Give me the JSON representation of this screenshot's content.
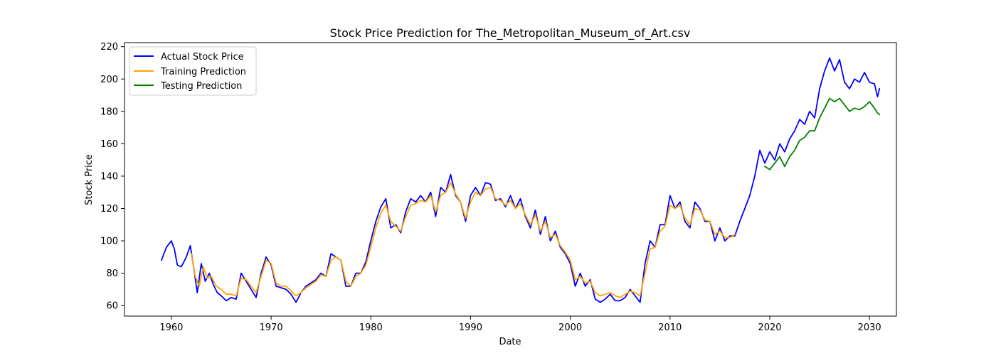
{
  "chart_data": {
    "type": "line",
    "title": "Stock Price Prediction for The_Metropolitan_Museum_of_Art.csv",
    "xlabel": "Date",
    "ylabel": "Stock Price",
    "xlim": [
      1955.3,
      2032.7
    ],
    "ylim": [
      53.5,
      222.5
    ],
    "x_ticks": [
      1960,
      1970,
      1980,
      1990,
      2000,
      2010,
      2020,
      2030
    ],
    "y_ticks": [
      60,
      80,
      100,
      120,
      140,
      160,
      180,
      200,
      220
    ],
    "grid": false,
    "legend_position": "upper left",
    "series": [
      {
        "name": "Actual Stock Price",
        "color": "#0000ff",
        "points": [
          [
            1959.0,
            88
          ],
          [
            1959.5,
            96
          ],
          [
            1960.0,
            100
          ],
          [
            1960.3,
            95
          ],
          [
            1960.6,
            85
          ],
          [
            1961.0,
            84
          ],
          [
            1961.5,
            90
          ],
          [
            1961.9,
            97
          ],
          [
            1962.2,
            85
          ],
          [
            1962.6,
            68
          ],
          [
            1963.0,
            86
          ],
          [
            1963.4,
            75
          ],
          [
            1963.8,
            80
          ],
          [
            1964.2,
            73
          ],
          [
            1964.6,
            68
          ],
          [
            1965.0,
            66
          ],
          [
            1965.5,
            63
          ],
          [
            1966.0,
            65
          ],
          [
            1966.5,
            64
          ],
          [
            1967.0,
            80
          ],
          [
            1967.5,
            75
          ],
          [
            1968.0,
            70
          ],
          [
            1968.5,
            65
          ],
          [
            1969.0,
            80
          ],
          [
            1969.5,
            90
          ],
          [
            1970.0,
            85
          ],
          [
            1970.5,
            72
          ],
          [
            1971.0,
            71
          ],
          [
            1971.5,
            70
          ],
          [
            1972.0,
            67
          ],
          [
            1972.5,
            62
          ],
          [
            1973.0,
            68
          ],
          [
            1973.5,
            72
          ],
          [
            1974.0,
            74
          ],
          [
            1974.5,
            76
          ],
          [
            1975.0,
            80
          ],
          [
            1975.5,
            78
          ],
          [
            1976.0,
            92
          ],
          [
            1976.5,
            90
          ],
          [
            1977.0,
            88
          ],
          [
            1977.5,
            72
          ],
          [
            1978.0,
            72
          ],
          [
            1978.5,
            80
          ],
          [
            1979.0,
            80
          ],
          [
            1979.5,
            87
          ],
          [
            1980.0,
            100
          ],
          [
            1980.5,
            112
          ],
          [
            1981.0,
            121
          ],
          [
            1981.5,
            126
          ],
          [
            1982.0,
            108
          ],
          [
            1982.5,
            110
          ],
          [
            1983.0,
            105
          ],
          [
            1983.5,
            118
          ],
          [
            1984.0,
            126
          ],
          [
            1984.5,
            124
          ],
          [
            1985.0,
            128
          ],
          [
            1985.5,
            124
          ],
          [
            1986.0,
            130
          ],
          [
            1986.5,
            115
          ],
          [
            1987.0,
            133
          ],
          [
            1987.5,
            130
          ],
          [
            1988.0,
            141
          ],
          [
            1988.5,
            128
          ],
          [
            1989.0,
            124
          ],
          [
            1989.5,
            112
          ],
          [
            1990.0,
            128
          ],
          [
            1990.5,
            133
          ],
          [
            1991.0,
            128
          ],
          [
            1991.5,
            136
          ],
          [
            1992.0,
            135
          ],
          [
            1992.5,
            125
          ],
          [
            1993.0,
            126
          ],
          [
            1993.5,
            121
          ],
          [
            1994.0,
            128
          ],
          [
            1994.5,
            120
          ],
          [
            1995.0,
            126
          ],
          [
            1995.5,
            115
          ],
          [
            1996.0,
            108
          ],
          [
            1996.5,
            119
          ],
          [
            1997.0,
            104
          ],
          [
            1997.5,
            115
          ],
          [
            1998.0,
            100
          ],
          [
            1998.5,
            106
          ],
          [
            1999.0,
            96
          ],
          [
            1999.5,
            92
          ],
          [
            2000.0,
            86
          ],
          [
            2000.5,
            72
          ],
          [
            2001.0,
            80
          ],
          [
            2001.5,
            72
          ],
          [
            2002.0,
            76
          ],
          [
            2002.5,
            64
          ],
          [
            2003.0,
            62
          ],
          [
            2003.5,
            64
          ],
          [
            2004.0,
            67
          ],
          [
            2004.5,
            63
          ],
          [
            2005.0,
            63
          ],
          [
            2005.5,
            65
          ],
          [
            2006.0,
            70
          ],
          [
            2006.5,
            66
          ],
          [
            2007.0,
            62
          ],
          [
            2007.5,
            86
          ],
          [
            2008.0,
            100
          ],
          [
            2008.5,
            96
          ],
          [
            2009.0,
            110
          ],
          [
            2009.5,
            110
          ],
          [
            2010.0,
            128
          ],
          [
            2010.5,
            120
          ],
          [
            2011.0,
            124
          ],
          [
            2011.5,
            112
          ],
          [
            2012.0,
            108
          ],
          [
            2012.5,
            124
          ],
          [
            2013.0,
            120
          ],
          [
            2013.5,
            112
          ],
          [
            2014.0,
            112
          ],
          [
            2014.5,
            100
          ],
          [
            2015.0,
            108
          ],
          [
            2015.5,
            100
          ],
          [
            2016.0,
            103
          ],
          [
            2016.5,
            103
          ],
          [
            2017.0,
            112
          ],
          [
            2017.5,
            120
          ],
          [
            2018.0,
            128
          ],
          [
            2018.5,
            140
          ],
          [
            2019.0,
            156
          ],
          [
            2019.5,
            148
          ],
          [
            2020.0,
            155
          ],
          [
            2020.5,
            150
          ],
          [
            2021.0,
            160
          ],
          [
            2021.5,
            155
          ],
          [
            2022.0,
            163
          ],
          [
            2022.5,
            168
          ],
          [
            2023.0,
            175
          ],
          [
            2023.5,
            172
          ],
          [
            2024.0,
            180
          ],
          [
            2024.5,
            176
          ],
          [
            2025.0,
            194
          ],
          [
            2025.5,
            205
          ],
          [
            2026.0,
            213
          ],
          [
            2026.5,
            205
          ],
          [
            2027.0,
            212
          ],
          [
            2027.5,
            198
          ],
          [
            2028.0,
            194
          ],
          [
            2028.5,
            200
          ],
          [
            2029.0,
            198
          ],
          [
            2029.5,
            204
          ],
          [
            2030.0,
            198
          ],
          [
            2030.5,
            197
          ],
          [
            2030.8,
            189
          ],
          [
            2031.0,
            194
          ]
        ]
      },
      {
        "name": "Training Prediction",
        "color": "#ffa500",
        "points": [
          [
            1962.0,
            92
          ],
          [
            1962.4,
            78
          ],
          [
            1962.8,
            72
          ],
          [
            1963.2,
            84
          ],
          [
            1963.6,
            77
          ],
          [
            1964.0,
            78
          ],
          [
            1964.5,
            72
          ],
          [
            1965.0,
            70
          ],
          [
            1965.5,
            67
          ],
          [
            1966.0,
            67
          ],
          [
            1966.5,
            66
          ],
          [
            1967.0,
            77
          ],
          [
            1967.5,
            76
          ],
          [
            1968.0,
            72
          ],
          [
            1968.5,
            68
          ],
          [
            1969.0,
            78
          ],
          [
            1969.5,
            88
          ],
          [
            1970.0,
            86
          ],
          [
            1970.5,
            74
          ],
          [
            1971.0,
            72
          ],
          [
            1971.5,
            72
          ],
          [
            1972.0,
            69
          ],
          [
            1972.5,
            66
          ],
          [
            1973.0,
            68
          ],
          [
            1973.5,
            71
          ],
          [
            1974.0,
            73
          ],
          [
            1974.5,
            75
          ],
          [
            1975.0,
            79
          ],
          [
            1975.5,
            78
          ],
          [
            1976.0,
            88
          ],
          [
            1976.5,
            90
          ],
          [
            1977.0,
            88
          ],
          [
            1977.5,
            75
          ],
          [
            1978.0,
            72
          ],
          [
            1978.5,
            78
          ],
          [
            1979.0,
            80
          ],
          [
            1979.5,
            85
          ],
          [
            1980.0,
            96
          ],
          [
            1980.5,
            108
          ],
          [
            1981.0,
            117
          ],
          [
            1981.5,
            122
          ],
          [
            1982.0,
            112
          ],
          [
            1982.5,
            109
          ],
          [
            1983.0,
            106
          ],
          [
            1983.5,
            115
          ],
          [
            1984.0,
            122
          ],
          [
            1984.5,
            123
          ],
          [
            1985.0,
            125
          ],
          [
            1985.5,
            124
          ],
          [
            1986.0,
            128
          ],
          [
            1986.5,
            118
          ],
          [
            1987.0,
            128
          ],
          [
            1987.5,
            130
          ],
          [
            1988.0,
            136
          ],
          [
            1988.5,
            129
          ],
          [
            1989.0,
            124
          ],
          [
            1989.5,
            114
          ],
          [
            1990.0,
            124
          ],
          [
            1990.5,
            130
          ],
          [
            1991.0,
            128
          ],
          [
            1991.5,
            132
          ],
          [
            1992.0,
            133
          ],
          [
            1992.5,
            126
          ],
          [
            1993.0,
            125
          ],
          [
            1993.5,
            122
          ],
          [
            1994.0,
            125
          ],
          [
            1994.5,
            120
          ],
          [
            1995.0,
            123
          ],
          [
            1995.5,
            116
          ],
          [
            1996.0,
            110
          ],
          [
            1996.5,
            116
          ],
          [
            1997.0,
            106
          ],
          [
            1997.5,
            112
          ],
          [
            1998.0,
            102
          ],
          [
            1998.5,
            104
          ],
          [
            1999.0,
            97
          ],
          [
            1999.5,
            93
          ],
          [
            2000.0,
            88
          ],
          [
            2000.5,
            76
          ],
          [
            2001.0,
            78
          ],
          [
            2001.5,
            74
          ],
          [
            2002.0,
            75
          ],
          [
            2002.5,
            68
          ],
          [
            2003.0,
            66
          ],
          [
            2003.5,
            67
          ],
          [
            2004.0,
            68
          ],
          [
            2004.5,
            66
          ],
          [
            2005.0,
            65
          ],
          [
            2005.5,
            67
          ],
          [
            2006.0,
            69
          ],
          [
            2006.5,
            68
          ],
          [
            2007.0,
            66
          ],
          [
            2007.5,
            80
          ],
          [
            2008.0,
            95
          ],
          [
            2008.5,
            96
          ],
          [
            2009.0,
            106
          ],
          [
            2009.5,
            109
          ],
          [
            2010.0,
            122
          ],
          [
            2010.5,
            120
          ],
          [
            2011.0,
            122
          ],
          [
            2011.5,
            114
          ],
          [
            2012.0,
            110
          ],
          [
            2012.5,
            120
          ],
          [
            2013.0,
            119
          ],
          [
            2013.5,
            113
          ],
          [
            2014.0,
            112
          ],
          [
            2014.5,
            104
          ],
          [
            2015.0,
            106
          ],
          [
            2015.5,
            102
          ],
          [
            2016.0,
            102
          ],
          [
            2016.5,
            104
          ]
        ]
      },
      {
        "name": "Testing Prediction",
        "color": "#008000",
        "points": [
          [
            2019.5,
            146
          ],
          [
            2020.0,
            144
          ],
          [
            2020.5,
            148
          ],
          [
            2021.0,
            152
          ],
          [
            2021.5,
            146
          ],
          [
            2022.0,
            152
          ],
          [
            2022.5,
            156
          ],
          [
            2023.0,
            162
          ],
          [
            2023.5,
            164
          ],
          [
            2024.0,
            168
          ],
          [
            2024.5,
            168
          ],
          [
            2025.0,
            176
          ],
          [
            2025.5,
            182
          ],
          [
            2026.0,
            188
          ],
          [
            2026.5,
            186
          ],
          [
            2027.0,
            188
          ],
          [
            2027.5,
            184
          ],
          [
            2028.0,
            180
          ],
          [
            2028.5,
            182
          ],
          [
            2029.0,
            181
          ],
          [
            2029.5,
            183
          ],
          [
            2030.0,
            186
          ],
          [
            2030.5,
            182
          ],
          [
            2030.8,
            179
          ],
          [
            2031.0,
            178
          ]
        ]
      }
    ]
  }
}
